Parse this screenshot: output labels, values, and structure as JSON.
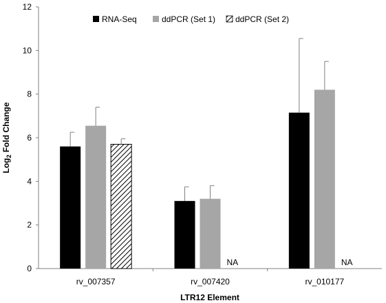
{
  "chart_data": {
    "type": "bar",
    "categories": [
      "rv_007357",
      "rv_007420",
      "rv_010177"
    ],
    "series": [
      {
        "name": "RNA-Seq",
        "values": [
          5.6,
          3.1,
          7.15
        ],
        "errors": [
          0.65,
          0.65,
          3.4
        ],
        "color": "#000000",
        "pattern": "solid"
      },
      {
        "name": "ddPCR (Set 1)",
        "values": [
          6.55,
          3.2,
          8.2
        ],
        "errors": [
          0.85,
          0.6,
          1.3
        ],
        "color": "#a6a6a6",
        "pattern": "solid"
      },
      {
        "name": "ddPCR (Set 2)",
        "values": [
          5.7,
          null,
          null
        ],
        "errors": [
          0.25,
          null,
          null
        ],
        "color": "#000000",
        "pattern": "hatched"
      }
    ],
    "na_text": "NA",
    "xlabel": "LTR12 Element",
    "ylabel_main": "Log",
    "ylabel_sub": "2",
    "ylabel_rest": " Fold Change",
    "ylim": [
      0,
      12
    ],
    "yticks": [
      0,
      2,
      4,
      6,
      8,
      10,
      12
    ],
    "grid": false,
    "legend_position": "top"
  }
}
